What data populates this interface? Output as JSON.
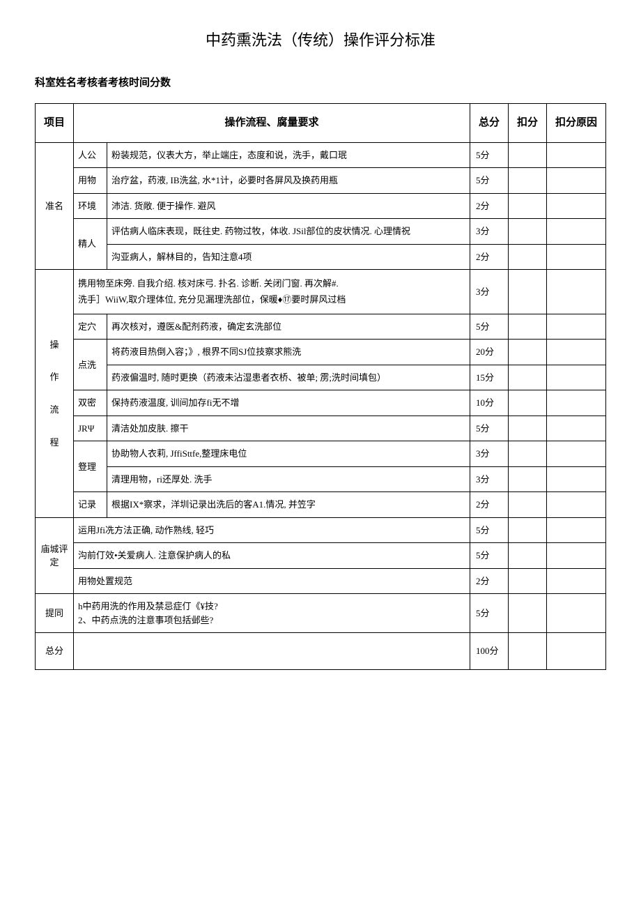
{
  "title": "中药熏洗法（传统）操作评分标准",
  "subtitle": "科室姓名考核者考核时间分数",
  "headers": {
    "project": "项目",
    "flow": "操作流程、腐量要求",
    "total": "总分",
    "deduct": "扣分",
    "reason": "扣分原因"
  },
  "groups": {
    "prepare": "准名",
    "operate_1": "操",
    "operate_2": "作",
    "operate_3": "流",
    "operate_4": "程",
    "eval": "庙城评定",
    "question": "提同",
    "total": "总分"
  },
  "rows": {
    "r1": {
      "sub": "人公",
      "desc": "粉装规范，仪表大方，举止端庄，态度和说，洗手，戴口珉",
      "score": "5分"
    },
    "r2": {
      "sub": "用物",
      "desc": "治疗盆，药液, IB洗盆, 水*1计，必要时各屏风及换药用瓶",
      "score": "5分"
    },
    "r3": {
      "sub": "环境",
      "desc": "沛洁. 货敞. 便于操作. 避风",
      "score": "2分"
    },
    "r4": {
      "sub": "精人",
      "desc": "评估病人临床表现，既往史. 药物过牧，体收. JSil部位的皮状情况. 心理情祝",
      "score": "3分"
    },
    "r5": {
      "desc": "沟亚病人，解林目的，告知注意4项",
      "score": "2分"
    },
    "r6": {
      "desc": "携用物至床旁. 自我介绍. 核对床弓. 扑名. 诊断. 关闭门窗. 再次解#.\n洗手］WiiW,取介理体位, 充分见漏理洗部位，保暖♦⑰要时屏风过档",
      "score": "3分"
    },
    "r7": {
      "sub": "定穴",
      "desc": "再次核对，遵医&配剂药液，确定玄洗部位",
      "score": "5分"
    },
    "r8": {
      "sub": "点洗",
      "desc": "将药液目热倒入容；》, 根界不同SJ位技察求熊洗",
      "score": "20分"
    },
    "r9": {
      "desc": "药液偏温时, 随时更换（药液未沾湿患者衣桥、被单; 雳;洗时间填包）",
      "score": "15分"
    },
    "r10": {
      "sub": "双密",
      "desc": "保持药液温度, 训间加存fi无不增",
      "score": "10分"
    },
    "r11": {
      "sub": "JRΨ",
      "desc": "清洁处加皮肤. 擦干",
      "score": "5分"
    },
    "r12": {
      "sub": "豋理",
      "desc": "协助物人衣莉, JffiSttfe,整理床电位",
      "score": "3分"
    },
    "r13": {
      "desc": "清理用物，ri还厚处. 洗手",
      "score": "3分"
    },
    "r14": {
      "sub": "记录",
      "desc": "根据IX*察求，洋圳记录出洗后的客A1.情况, 并笠字",
      "score": "2分"
    },
    "r15": {
      "desc": "运用Jfi冼方法正确, 动作熟线, 轻巧",
      "score": "5分"
    },
    "r16": {
      "desc": "沟前仃效•关爱病人. 注意保护病人的私",
      "score": "5分"
    },
    "r17": {
      "desc": "用物处置规范",
      "score": "2分"
    },
    "r18": {
      "desc": "h中药用洗的作用及禁忌症仃《¥技?\n2、中药点洗的注意事项包括邺些?",
      "score": "5分"
    },
    "r19": {
      "score": "100分"
    }
  },
  "styling": {
    "background_color": "#ffffff",
    "text_color": "#000000",
    "border_color": "#000000",
    "title_fontsize": 22,
    "subtitle_fontsize": 15,
    "header_fontsize": 15,
    "body_fontsize": 13,
    "font_family": "SimSun"
  }
}
